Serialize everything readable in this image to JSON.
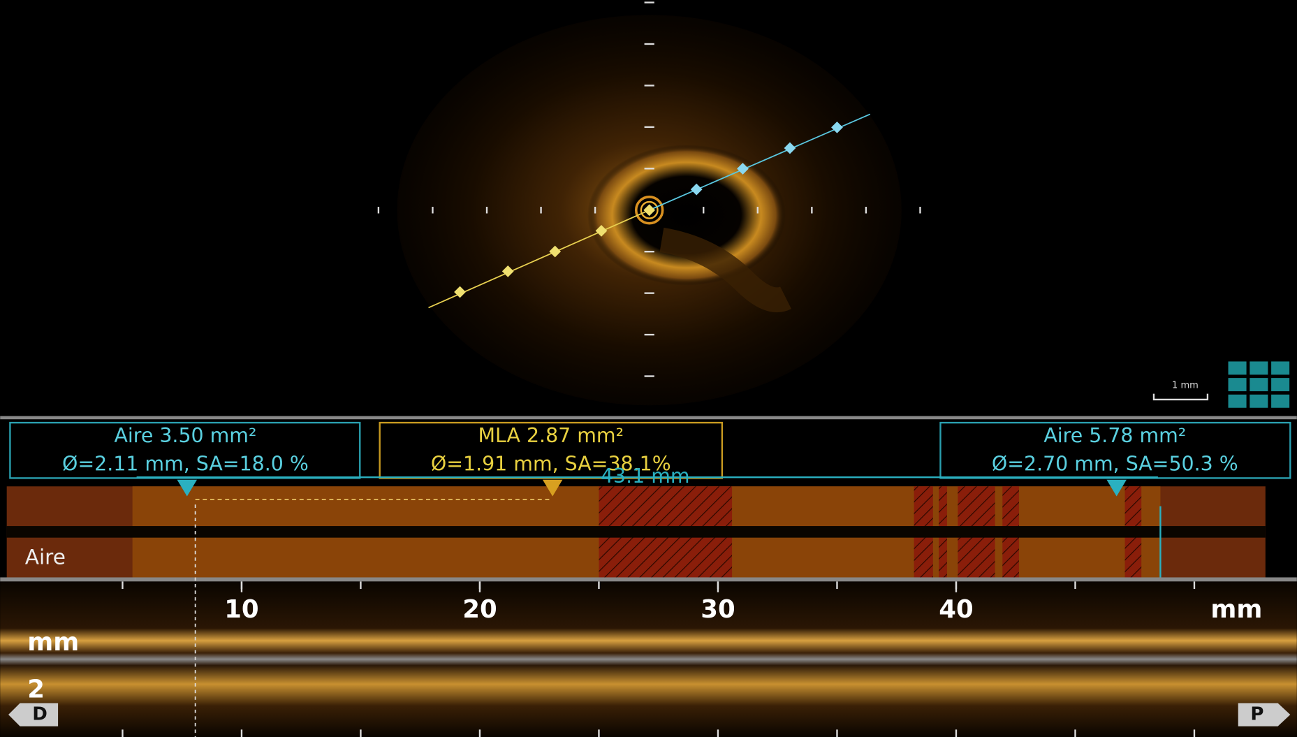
{
  "measurements": [
    {
      "area": "Aire 3.50 mm²",
      "detail": "Ø=2.11 mm, SA=18.0 %"
    },
    {
      "area": "MLA 2.87 mm²",
      "detail": "Ø=1.91 mm, SA=38.1%"
    },
    {
      "area": "Aire 5.78 mm²",
      "detail": "Ø=2.70 mm, SA=50.3 %"
    }
  ],
  "length_label": "43.1 mm",
  "track_label": "Aire",
  "scale_bar": "1 mm",
  "longitudinal_axis": {
    "ticks": [
      10,
      20,
      30,
      40
    ],
    "unit": "mm"
  },
  "depth_axis": {
    "unit": "mm",
    "tick": "2"
  },
  "buttons": {
    "distal": "D",
    "proximal": "P"
  }
}
